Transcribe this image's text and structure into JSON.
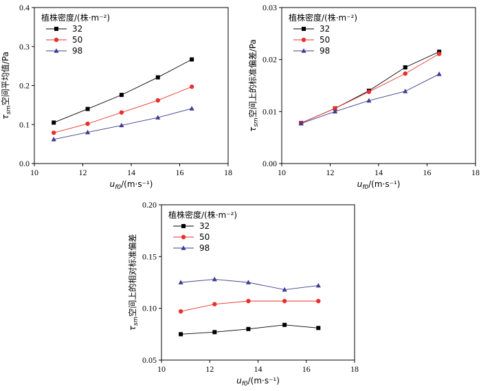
{
  "colors": {
    "s32": "#000000",
    "s50": "#e8302a",
    "s98": "#3b3b8f"
  },
  "legend_title": "植株密度/(株·m⁻²)",
  "xlabel": "u_f0/(m·s⁻¹)",
  "chart_data": [
    {
      "type": "line",
      "ylabel": "τ_sm空间平均值/Pa",
      "x": [
        10.8,
        12.2,
        13.6,
        15.1,
        16.5
      ],
      "xlim": [
        10,
        18
      ],
      "xticks": [
        "10",
        "12",
        "14",
        "16",
        "18"
      ],
      "ylim": [
        0.0,
        0.4
      ],
      "yticks": [
        "0.0",
        "0.1",
        "0.2",
        "0.3",
        "0.4"
      ],
      "legend_position": "top-left",
      "series": [
        {
          "name": "32",
          "values": [
            0.105,
            0.14,
            0.176,
            0.221,
            0.267
          ]
        },
        {
          "name": "50",
          "values": [
            0.079,
            0.102,
            0.131,
            0.162,
            0.197
          ]
        },
        {
          "name": "98",
          "values": [
            0.062,
            0.08,
            0.098,
            0.118,
            0.141
          ]
        }
      ]
    },
    {
      "type": "line",
      "ylabel": "τ_sm空间上的标准偏差/Pa",
      "x": [
        10.8,
        12.2,
        13.6,
        15.1,
        16.5
      ],
      "xlim": [
        10,
        18
      ],
      "xticks": [
        "10",
        "12",
        "14",
        "16",
        "18"
      ],
      "ylim": [
        0.0,
        0.03
      ],
      "yticks": [
        "0.00",
        "0.01",
        "0.02",
        "0.03"
      ],
      "legend_position": "top-left",
      "series": [
        {
          "name": "32",
          "values": [
            0.0078,
            0.0106,
            0.014,
            0.0185,
            0.0215
          ]
        },
        {
          "name": "50",
          "values": [
            0.0078,
            0.0106,
            0.0138,
            0.0173,
            0.0211
          ]
        },
        {
          "name": "98",
          "values": [
            0.0077,
            0.01,
            0.0121,
            0.0139,
            0.0172
          ]
        }
      ]
    },
    {
      "type": "line",
      "ylabel": "τ_sm空间上的相对标准偏差",
      "x": [
        10.8,
        12.2,
        13.6,
        15.1,
        16.5
      ],
      "xlim": [
        10,
        18
      ],
      "xticks": [
        "10",
        "12",
        "14",
        "16",
        "18"
      ],
      "ylim": [
        0.05,
        0.2
      ],
      "yticks": [
        "0.05",
        "0.10",
        "0.15",
        "0.20"
      ],
      "legend_position": "top-left",
      "series": [
        {
          "name": "32",
          "values": [
            0.075,
            0.077,
            0.08,
            0.084,
            0.081
          ]
        },
        {
          "name": "50",
          "values": [
            0.097,
            0.104,
            0.107,
            0.107,
            0.107
          ]
        },
        {
          "name": "98",
          "values": [
            0.125,
            0.128,
            0.125,
            0.118,
            0.122
          ]
        }
      ]
    }
  ]
}
